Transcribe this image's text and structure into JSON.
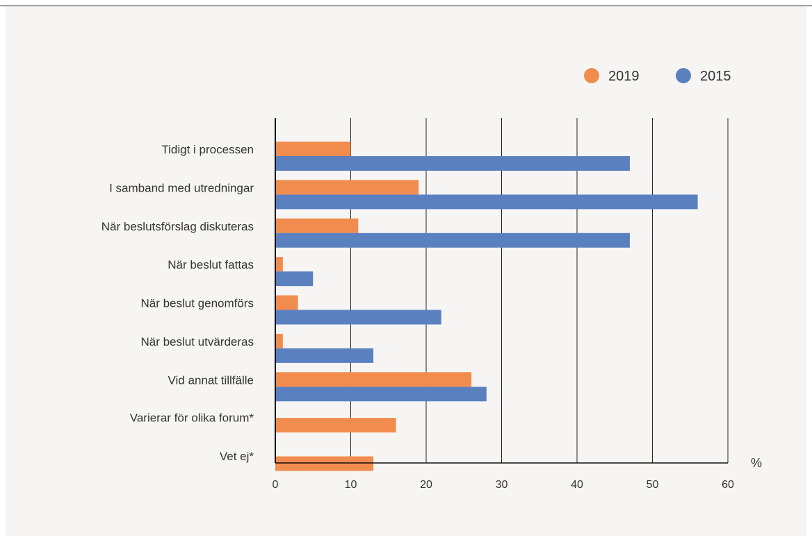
{
  "chart_data": {
    "type": "bar",
    "orientation": "horizontal",
    "categories": [
      "Tidigt i processen",
      "I samband med utredningar",
      "När beslutsförslag diskuteras",
      "När beslut fattas",
      "När beslut genomförs",
      "När beslut utvärderas",
      "Vid annat tillfälle",
      "Varierar för olika forum*",
      "Vet ej*"
    ],
    "series": [
      {
        "name": "2019",
        "color": "#f28c4e",
        "values": [
          10,
          19,
          11,
          1,
          3,
          1,
          26,
          16,
          13
        ]
      },
      {
        "name": "2015",
        "color": "#5b80c0",
        "values": [
          47,
          56,
          47,
          5,
          22,
          13,
          28,
          null,
          null
        ]
      }
    ],
    "xlabel": "%",
    "xlim": [
      0,
      60
    ],
    "xticks": [
      0,
      10,
      20,
      30,
      40,
      50,
      60
    ],
    "grid": "vertical",
    "legend_position": "top-right"
  }
}
